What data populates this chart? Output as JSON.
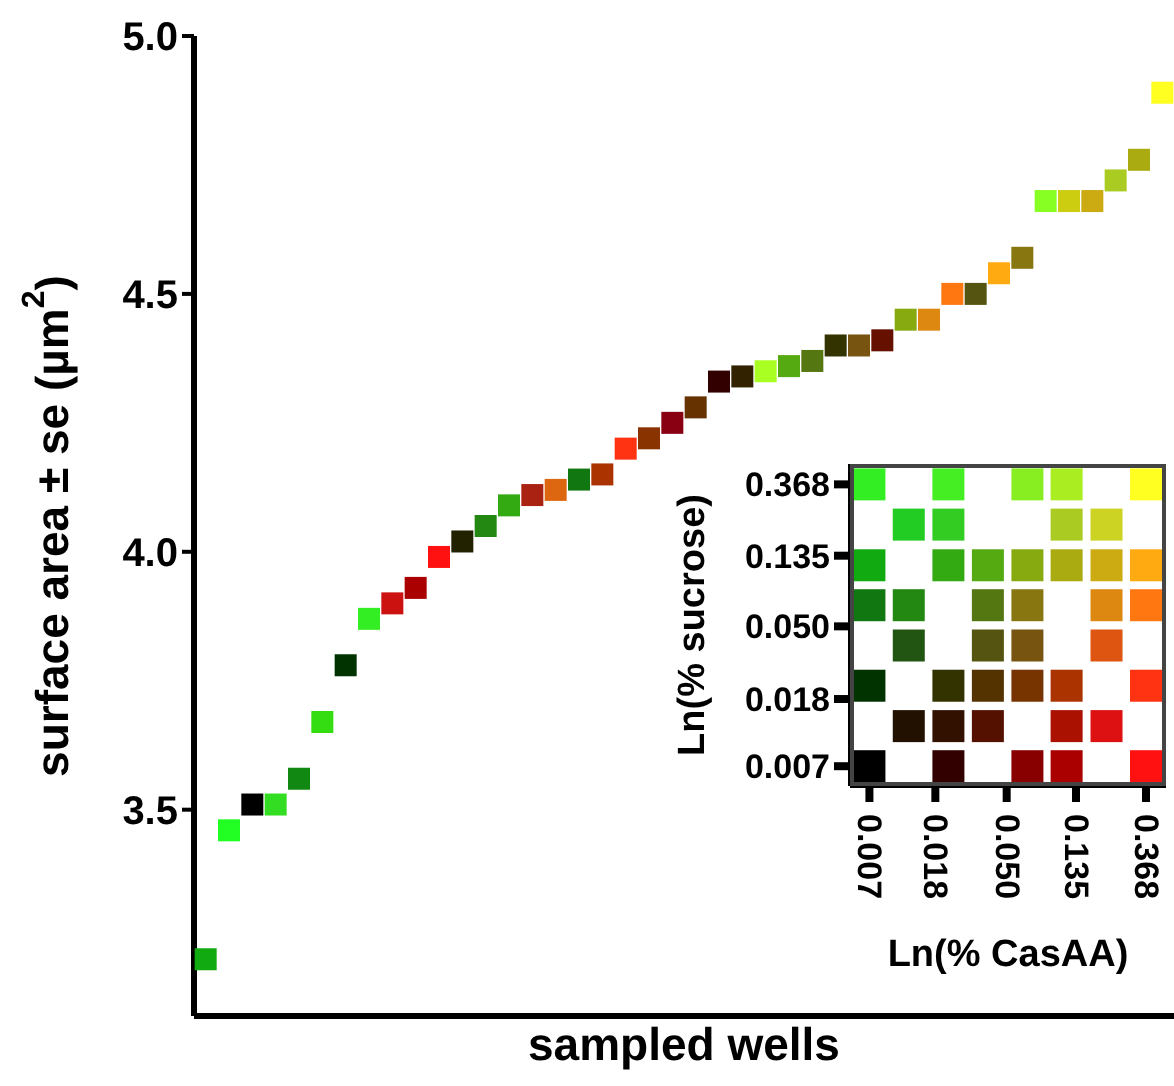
{
  "chart_data": [
    {
      "type": "scatter",
      "xlabel": "sampled wells",
      "ylabel": "surface area ± se (µm$^{2}$)",
      "marker": "square",
      "categories": [
        null,
        null,
        null,
        null,
        null,
        null,
        null,
        null,
        null,
        null,
        null,
        null,
        null,
        null,
        null,
        null,
        null,
        null,
        null,
        null,
        null,
        null,
        null,
        null,
        null,
        null,
        null,
        null,
        null,
        null,
        null,
        null,
        null,
        null,
        null,
        null,
        null,
        null,
        null,
        null,
        null,
        null
      ],
      "values": [
        3.21,
        3.46,
        3.51,
        3.51,
        3.56,
        3.67,
        3.78,
        3.87,
        3.9,
        3.93,
        3.99,
        4.02,
        4.05,
        4.09,
        4.11,
        4.12,
        4.14,
        4.15,
        4.2,
        4.22,
        4.25,
        4.28,
        4.33,
        4.34,
        4.35,
        4.36,
        4.37,
        4.4,
        4.4,
        4.41,
        4.45,
        4.45,
        4.5,
        4.5,
        4.54,
        4.57,
        4.68,
        4.68,
        4.68,
        4.72,
        4.76,
        4.89
      ],
      "colors": [
        "#11aa11",
        "#22ff22",
        "#000000",
        "#33dd22",
        "#118811",
        "#33dd11",
        "#003300",
        "#33ee22",
        "#cc1111",
        "#aa0000",
        "#ff1111",
        "#222200",
        "#228811",
        "#33aa11",
        "#aa2211",
        "#dd6611",
        "#117711",
        "#aa3300",
        "#ff3311",
        "#883300",
        "#880011",
        "#663300",
        "#330000",
        "#332200",
        "#aaff22",
        "#55aa11",
        "#557711",
        "#333300",
        "#775511",
        "#661100",
        "#88aa11",
        "#dd8811",
        "#ff7711",
        "#555511",
        "#ffaa11",
        "#887711",
        "#88ff22",
        "#cccc11",
        "#ccaa11",
        "#aacc22",
        "#aaaa11",
        "#ffff22"
      ],
      "ylim": [
        3.1,
        5.0
      ],
      "yticks": [
        {
          "value": 3.5,
          "label": "3.5"
        },
        {
          "value": 4,
          "label": "4.0"
        },
        {
          "value": 4.5,
          "label": "4.5"
        },
        {
          "value": 5,
          "label": "5.0"
        }
      ]
    },
    {
      "type": "scatter",
      "xlabel": "Ln(% CasAA)",
      "ylabel": "Ln(% sucrose)",
      "marker": "square",
      "log": "xy",
      "x": [
        0.007,
        0.0217,
        0.0673,
        0.118,
        0.368,
        0.0123,
        0.0217,
        0.118,
        0.209,
        0.007,
        0.0217,
        0.0382,
        0.0673,
        0.118,
        0.209,
        0.368,
        0.007,
        0.0123,
        0.0382,
        0.0673,
        0.209,
        0.368,
        0.0123,
        0.0382,
        0.0673,
        0.209,
        0.007,
        0.0217,
        0.0382,
        0.0673,
        0.118,
        0.368,
        0.0123,
        0.0217,
        0.0382,
        0.118,
        0.209,
        0.007,
        0.0217,
        0.0673,
        0.118,
        0.368
      ],
      "values": [
        0.368,
        0.368,
        0.368,
        0.368,
        0.368,
        0.209,
        0.209,
        0.209,
        0.209,
        0.118,
        0.118,
        0.118,
        0.118,
        0.118,
        0.118,
        0.118,
        0.0673,
        0.0673,
        0.0673,
        0.0673,
        0.0673,
        0.0673,
        0.0382,
        0.0382,
        0.0382,
        0.0382,
        0.0217,
        0.0217,
        0.0217,
        0.0217,
        0.0217,
        0.0217,
        0.0123,
        0.0123,
        0.0123,
        0.0123,
        0.0123,
        0.007,
        0.007,
        0.007,
        0.007,
        0.007
      ],
      "colors": [
        "#33ee22",
        "#44ee22",
        "#88ee22",
        "#aaee22",
        "#ffff22",
        "#22cc22",
        "#33cc22",
        "#aacc22",
        "#ccd322",
        "#11aa11",
        "#33aa11",
        "#55aa11",
        "#88aa11",
        "#aaaa11",
        "#ccaa11",
        "#ffaa11",
        "#117711",
        "#228811",
        "#557711",
        "#887711",
        "#dd8811",
        "#ff7711",
        "#225511",
        "#555511",
        "#775511",
        "#dd5511",
        "#003300",
        "#333300",
        "#553300",
        "#773300",
        "#aa3300",
        "#ff3311",
        "#221100",
        "#331100",
        "#551100",
        "#aa1100",
        "#dd1111",
        "#000000",
        "#330000",
        "#880000",
        "#aa0000",
        "#ff1111"
      ],
      "xlim": [
        0.0053,
        0.49
      ],
      "ylim": [
        0.0053,
        0.49
      ],
      "xticks": [
        {
          "value": 0.007,
          "label": "0.007"
        },
        {
          "value": 0.018,
          "label": "0.018"
        },
        {
          "value": 0.05,
          "label": "0.050"
        },
        {
          "value": 0.135,
          "label": "0.135"
        },
        {
          "value": 0.368,
          "label": "0.368"
        }
      ],
      "yticks": [
        {
          "value": 0.007,
          "label": "0.007"
        },
        {
          "value": 0.018,
          "label": "0.018"
        },
        {
          "value": 0.05,
          "label": "0.050"
        },
        {
          "value": 0.135,
          "label": "0.135"
        },
        {
          "value": 0.368,
          "label": "0.368"
        }
      ]
    }
  ]
}
